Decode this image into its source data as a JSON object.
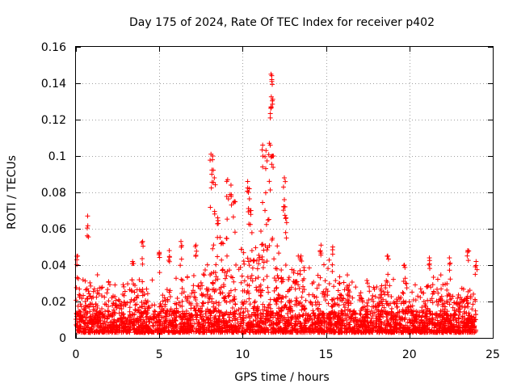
{
  "chart_data": {
    "type": "scatter",
    "title": "Day 175 of 2024, Rate Of TEC Index for receiver p402",
    "xlabel": "GPS time / hours",
    "ylabel": "ROTI / TECUs",
    "xlim": [
      0,
      25
    ],
    "ylim": [
      0,
      0.16
    ],
    "xticks": [
      0,
      5,
      10,
      15,
      20,
      25
    ],
    "xtick_labels": [
      "0",
      "5",
      "10",
      "15",
      "20",
      "25"
    ],
    "yticks": [
      0,
      0.02,
      0.04,
      0.06,
      0.08,
      0.1,
      0.12,
      0.14,
      0.16
    ],
    "ytick_labels": [
      "0",
      "0.02",
      "0.04",
      "0.06",
      "0.08",
      "0.1",
      "0.12",
      "0.14",
      "0.16"
    ],
    "grid": true,
    "marker": "+",
    "series_color": "#ff0000",
    "series": [
      {
        "name": "ROTI",
        "x_range": [
          0,
          24
        ],
        "envelope": {
          "hours": [
            0,
            1,
            2,
            3,
            4,
            5,
            6,
            7,
            7.5,
            8,
            8.5,
            9,
            9.5,
            10,
            10.5,
            11,
            11.5,
            12,
            12.5,
            13,
            14,
            14.5,
            15,
            15.5,
            16,
            17,
            18,
            19,
            20,
            21,
            21.5,
            22,
            23,
            24
          ],
          "typical_max": [
            0.03,
            0.032,
            0.03,
            0.032,
            0.03,
            0.028,
            0.032,
            0.034,
            0.04,
            0.045,
            0.05,
            0.055,
            0.05,
            0.055,
            0.05,
            0.06,
            0.065,
            0.045,
            0.042,
            0.04,
            0.035,
            0.04,
            0.04,
            0.038,
            0.032,
            0.03,
            0.028,
            0.03,
            0.028,
            0.03,
            0.032,
            0.03,
            0.028,
            0.028
          ],
          "baseline_min": 0.003
        },
        "notable_points": [
          {
            "x": 0.1,
            "y": 0.045
          },
          {
            "x": 0.7,
            "y": 0.067
          },
          {
            "x": 3.4,
            "y": 0.042
          },
          {
            "x": 4.0,
            "y": 0.053
          },
          {
            "x": 5.0,
            "y": 0.047
          },
          {
            "x": 5.6,
            "y": 0.048
          },
          {
            "x": 6.3,
            "y": 0.053
          },
          {
            "x": 7.2,
            "y": 0.051
          },
          {
            "x": 8.1,
            "y": 0.101
          },
          {
            "x": 8.2,
            "y": 0.1
          },
          {
            "x": 8.3,
            "y": 0.088
          },
          {
            "x": 8.5,
            "y": 0.066
          },
          {
            "x": 9.1,
            "y": 0.087
          },
          {
            "x": 9.3,
            "y": 0.084
          },
          {
            "x": 9.5,
            "y": 0.075
          },
          {
            "x": 10.3,
            "y": 0.086
          },
          {
            "x": 10.4,
            "y": 0.082
          },
          {
            "x": 10.5,
            "y": 0.07
          },
          {
            "x": 11.2,
            "y": 0.106
          },
          {
            "x": 11.4,
            "y": 0.103
          },
          {
            "x": 11.6,
            "y": 0.107
          },
          {
            "x": 11.7,
            "y": 0.145
          },
          {
            "x": 11.75,
            "y": 0.141
          },
          {
            "x": 11.7,
            "y": 0.127
          },
          {
            "x": 11.8,
            "y": 0.1
          },
          {
            "x": 12.5,
            "y": 0.088
          },
          {
            "x": 12.5,
            "y": 0.076
          },
          {
            "x": 12.6,
            "y": 0.066
          },
          {
            "x": 13.5,
            "y": 0.045
          },
          {
            "x": 14.7,
            "y": 0.051
          },
          {
            "x": 15.4,
            "y": 0.05
          },
          {
            "x": 18.7,
            "y": 0.045
          },
          {
            "x": 19.7,
            "y": 0.04
          },
          {
            "x": 21.2,
            "y": 0.044
          },
          {
            "x": 22.4,
            "y": 0.044
          },
          {
            "x": 23.5,
            "y": 0.048
          },
          {
            "x": 24.0,
            "y": 0.042
          }
        ]
      }
    ]
  }
}
